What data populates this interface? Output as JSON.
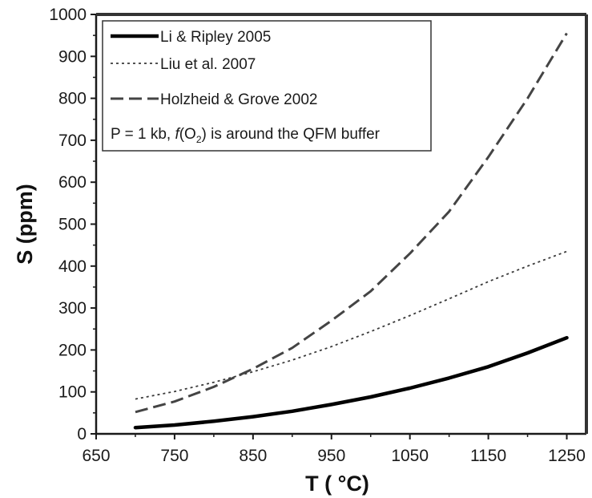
{
  "chart_data": {
    "type": "line",
    "title": "",
    "xlabel": "T ( °C)",
    "ylabel": "S (ppm)",
    "xlim": [
      650,
      1275
    ],
    "ylim": [
      0,
      1000
    ],
    "x_ticks": [
      650,
      750,
      850,
      950,
      1050,
      1150,
      1250
    ],
    "y_ticks": [
      0,
      100,
      200,
      300,
      400,
      500,
      600,
      700,
      800,
      900,
      1000
    ],
    "grid": false,
    "legend_position": "top-left",
    "series": [
      {
        "name": "Li & Ripley 2005",
        "style": "solid",
        "color": "#000000",
        "x": [
          700,
          750,
          800,
          850,
          900,
          950,
          1000,
          1050,
          1100,
          1150,
          1200,
          1250
        ],
        "y": [
          15,
          21,
          30,
          41,
          54,
          70,
          88,
          109,
          133,
          160,
          193,
          229
        ]
      },
      {
        "name": "Liu et al. 2007",
        "style": "dotted",
        "color": "#3a3a3a",
        "x": [
          700,
          750,
          800,
          850,
          900,
          950,
          1000,
          1050,
          1100,
          1150,
          1200,
          1250
        ],
        "y": [
          83,
          101,
          123,
          148,
          176,
          208,
          244,
          282,
          322,
          363,
          400,
          435
        ]
      },
      {
        "name": "Holzheid & Grove 2002",
        "style": "dashed",
        "color": "#444444",
        "x": [
          700,
          750,
          800,
          850,
          900,
          950,
          1000,
          1050,
          1100,
          1150,
          1200,
          1250
        ],
        "y": [
          52,
          77,
          112,
          155,
          205,
          270,
          340,
          430,
          530,
          660,
          800,
          955
        ]
      }
    ],
    "annotations": [
      {
        "text_parts": [
          {
            "text": "P = 1 kb, ",
            "style": "normal"
          },
          {
            "text": "f",
            "style": "italic"
          },
          {
            "text": "(O",
            "style": "normal"
          },
          {
            "text": "2",
            "style": "subscript"
          },
          {
            "text": ") is around the QFM buffer",
            "style": "normal"
          }
        ]
      }
    ]
  }
}
